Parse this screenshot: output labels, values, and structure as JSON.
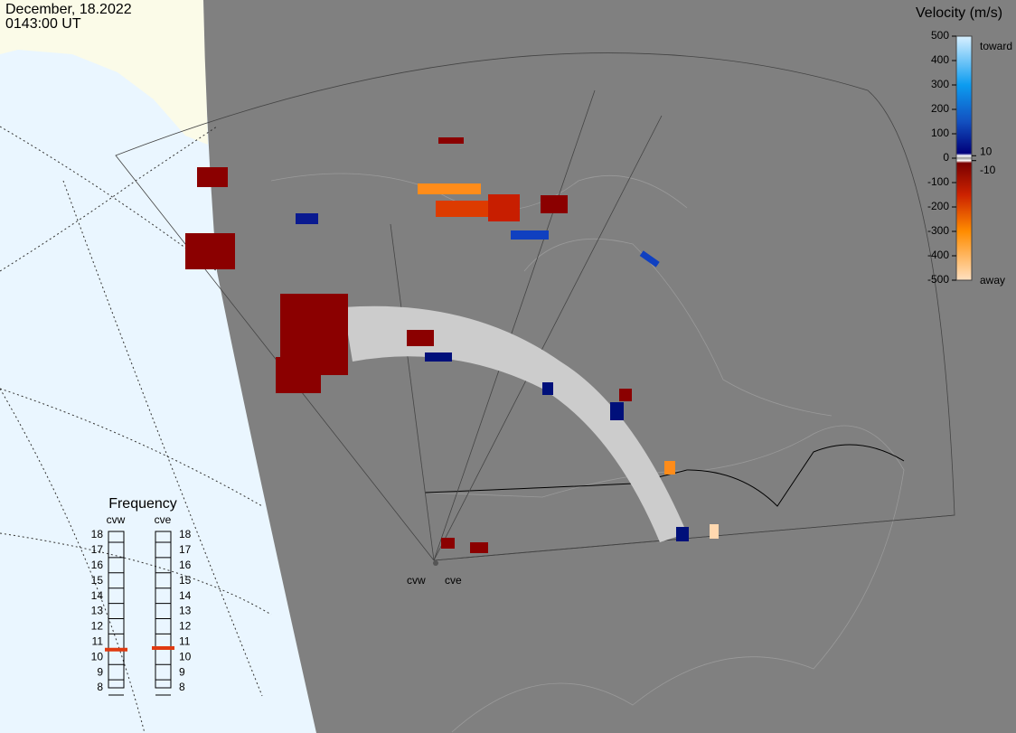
{
  "header": {
    "date": "December, 18.2022",
    "time": "0143:00 UT"
  },
  "colorbar": {
    "title": "Velocity (m/s)",
    "lim": [
      -500,
      500
    ],
    "ticks": [
      500,
      400,
      300,
      200,
      100,
      0,
      -100,
      -200,
      -300,
      -400,
      -500
    ],
    "inner_ticks": [
      10,
      -10
    ],
    "toward": "toward",
    "away": "away"
  },
  "frequency": {
    "title": "Frequency",
    "lim": [
      8,
      18
    ],
    "ticks": [
      18,
      17,
      16,
      15,
      14,
      13,
      12,
      11,
      10,
      9,
      8
    ],
    "radars": [
      {
        "name": "cvw",
        "value": 10.5
      },
      {
        "name": "cve",
        "value": 10.6
      }
    ]
  },
  "radar_labels": [
    "cvw",
    "cve"
  ]
}
